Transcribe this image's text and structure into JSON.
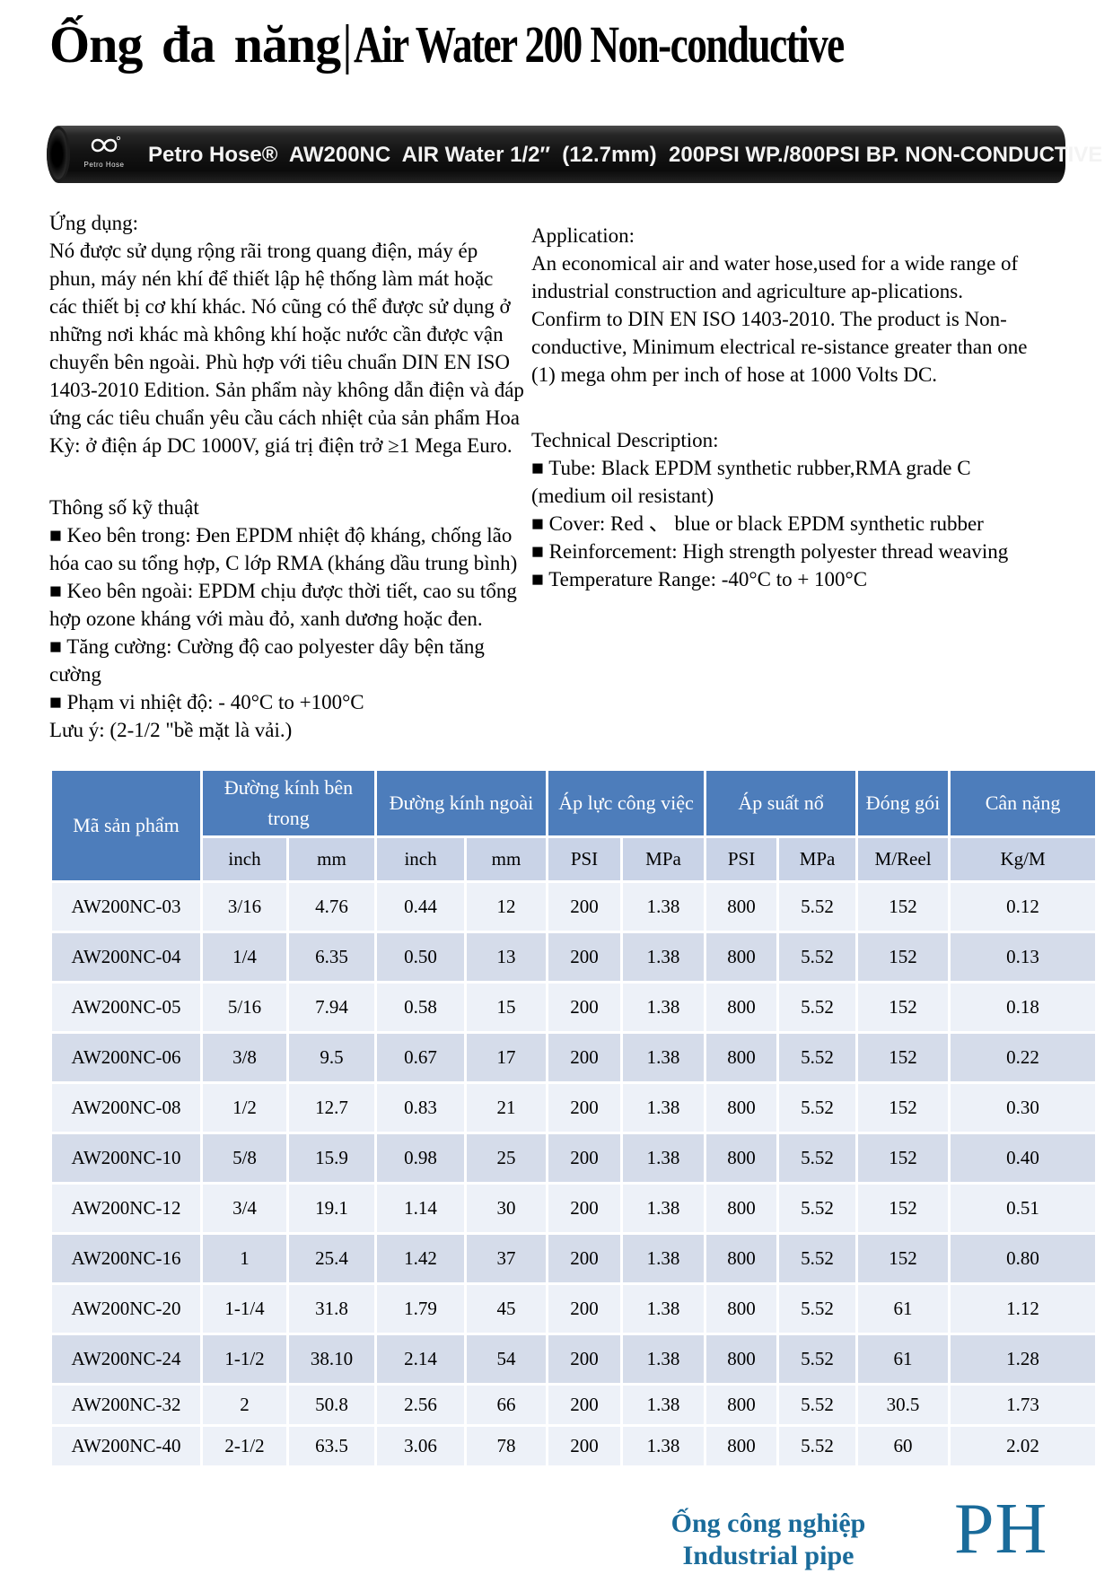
{
  "header": {
    "title_vi": "Ống đa năng",
    "separator": "|",
    "title_en": "Air Water 200 Non-conductive"
  },
  "hose_band": {
    "logo_caption": "Petro Hose",
    "print_text": "Petro Hose®  AW200NC  AIR Water 1/2″  (12.7mm)  200PSI WP./800PSI BP. NON-CONDUCTIVE"
  },
  "vi": {
    "heading": "Ứng dụng:",
    "paragraph": "Nó được sử dụng rộng rãi trong quang điện, máy ép phun, máy nén khí để thiết lập hệ thống làm mát hoặc các thiết bị cơ khí khác. Nó cũng có thể được sử dụng ở những nơi khác mà không khí hoặc nước cần được vận chuyển bên ngoài. Phù hợp với tiêu chuẩn DIN EN ISO 1403-2010 Edition. Sản phẩm này không dẫn điện và đáp ứng các tiêu chuẩn yêu cầu cách nhiệt của sản phẩm Hoa Kỳ: ở điện áp DC 1000V, giá trị điện trở ≥1 Mega Euro.",
    "specs_heading": "Thông số kỹ thuật",
    "bullets": [
      "■ Keo bên trong: Đen EPDM nhiệt độ kháng, chống lão hóa cao su tổng hợp, C lớp RMA (kháng dầu trung bình)",
      "■ Keo bên ngoài: EPDM chịu được thời tiết, cao su tổng hợp ozone kháng với màu đỏ, xanh dương hoặc đen.",
      "■ Tăng cường: Cường độ cao polyester dây bện tăng cường",
      "■ Phạm vi nhiệt độ: - 40°C to +100°C"
    ],
    "note": "Lưu ý: (2-1/2 \"bề mặt là vải.)"
  },
  "en": {
    "heading": "Application:",
    "paragraph": "An economical air and water hose,used for a wide range of industrial construction and agriculture ap-plications. Confirm to DIN EN ISO 1403-2010. The product is Non-conductive, Minimum electrical re-sistance greater than one (1) mega ohm per inch of hose at 1000 Volts DC.",
    "tech_heading": "Technical Description:",
    "bullets": [
      "■ Tube: Black EPDM synthetic rubber,RMA grade C (medium oil resistant)",
      "■ Cover: Red 、 blue or black EPDM synthetic rubber",
      "■ Reinforcement: High strength polyester thread weaving",
      "■ Temperature Range: -40°C to + 100°C"
    ]
  },
  "table": {
    "product_col": "Mã sản phẩm",
    "groups": [
      {
        "label": "Đường kính bên trong",
        "span": 2
      },
      {
        "label": "Đường kính ngoài",
        "span": 2
      },
      {
        "label": "Áp lực công việc",
        "span": 2
      },
      {
        "label": "Áp suất nổ",
        "span": 2
      },
      {
        "label": "Đóng gói",
        "span": 1
      },
      {
        "label": "Cân nặng",
        "span": 1
      }
    ],
    "units": [
      "inch",
      "mm",
      "inch",
      "mm",
      "PSI",
      "MPa",
      "PSI",
      "MPa",
      "M/Reel",
      "Kg/M"
    ],
    "rows": [
      {
        "code": "AW200NC-03",
        "values": [
          "3/16",
          "4.76",
          "0.44",
          "12",
          "200",
          "1.38",
          "800",
          "5.52",
          "152",
          "0.12"
        ],
        "shade": "light",
        "small": false
      },
      {
        "code": "AW200NC-04",
        "values": [
          "1/4",
          "6.35",
          "0.50",
          "13",
          "200",
          "1.38",
          "800",
          "5.52",
          "152",
          "0.13"
        ],
        "shade": "dark",
        "small": false
      },
      {
        "code": "AW200NC-05",
        "values": [
          "5/16",
          "7.94",
          "0.58",
          "15",
          "200",
          "1.38",
          "800",
          "5.52",
          "152",
          "0.18"
        ],
        "shade": "light",
        "small": false
      },
      {
        "code": "AW200NC-06",
        "values": [
          "3/8",
          "9.5",
          "0.67",
          "17",
          "200",
          "1.38",
          "800",
          "5.52",
          "152",
          "0.22"
        ],
        "shade": "dark",
        "small": false
      },
      {
        "code": "AW200NC-08",
        "values": [
          "1/2",
          "12.7",
          "0.83",
          "21",
          "200",
          "1.38",
          "800",
          "5.52",
          "152",
          "0.30"
        ],
        "shade": "light",
        "small": false
      },
      {
        "code": "AW200NC-10",
        "values": [
          "5/8",
          "15.9",
          "0.98",
          "25",
          "200",
          "1.38",
          "800",
          "5.52",
          "152",
          "0.40"
        ],
        "shade": "dark",
        "small": false
      },
      {
        "code": "AW200NC-12",
        "values": [
          "3/4",
          "19.1",
          "1.14",
          "30",
          "200",
          "1.38",
          "800",
          "5.52",
          "152",
          "0.51"
        ],
        "shade": "light",
        "small": false
      },
      {
        "code": "AW200NC-16",
        "values": [
          "1",
          "25.4",
          "1.42",
          "37",
          "200",
          "1.38",
          "800",
          "5.52",
          "152",
          "0.80"
        ],
        "shade": "dark",
        "small": false
      },
      {
        "code": "AW200NC-20",
        "values": [
          "1-1/4",
          "31.8",
          "1.79",
          "45",
          "200",
          "1.38",
          "800",
          "5.52",
          "61",
          "1.12"
        ],
        "shade": "light",
        "small": false
      },
      {
        "code": "AW200NC-24",
        "values": [
          "1-1/2",
          "38.10",
          "2.14",
          "54",
          "200",
          "1.38",
          "800",
          "5.52",
          "61",
          "1.28"
        ],
        "shade": "dark",
        "small": false
      },
      {
        "code": "AW200NC-32",
        "values": [
          "2",
          "50.8",
          "2.56",
          "66",
          "200",
          "1.38",
          "800",
          "5.52",
          "30.5",
          "1.73"
        ],
        "shade": "light",
        "small": true
      },
      {
        "code": "AW200NC-40",
        "values": [
          "2-1/2",
          "63.5",
          "3.06",
          "78",
          "200",
          "1.38",
          "800",
          "5.52",
          "60",
          "2.02"
        ],
        "shade": "light",
        "small": true
      }
    ]
  },
  "footer": {
    "line1": "Ống công nghiệp",
    "line2": "Industrial pipe",
    "logo": "PH"
  },
  "colors": {
    "table_header_blue": "#4d7dbb",
    "units_row": "#c9d3e7",
    "row_light": "#edf1f8",
    "row_dark": "#d5dcea",
    "footer_blue": "#1a6b9a",
    "hose_black": "#141414",
    "hose_text": "#f3f3f3"
  }
}
